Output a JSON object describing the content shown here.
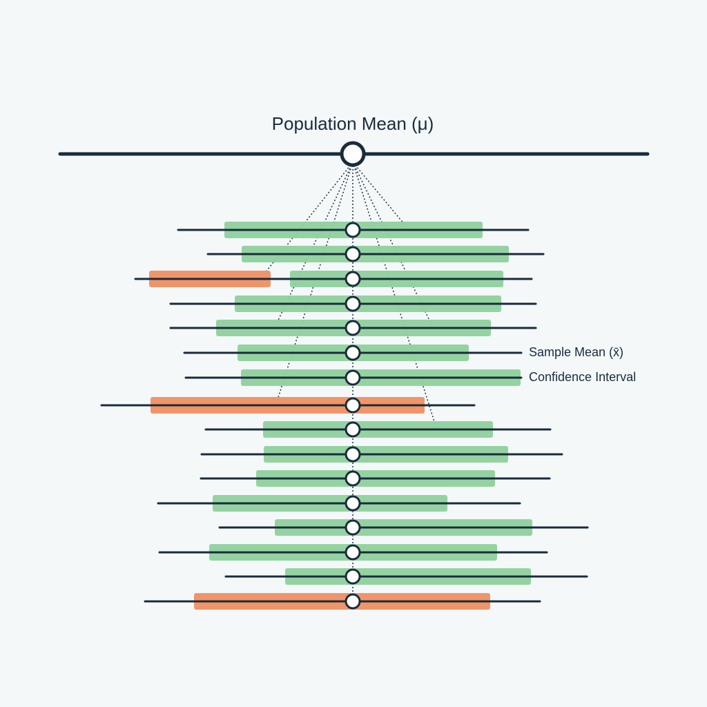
{
  "title": "Population Mean (μ)",
  "labels": {
    "sample_mean": "Sample Mean (x̄)",
    "confidence_interval": "Confidence Interval"
  }
}
